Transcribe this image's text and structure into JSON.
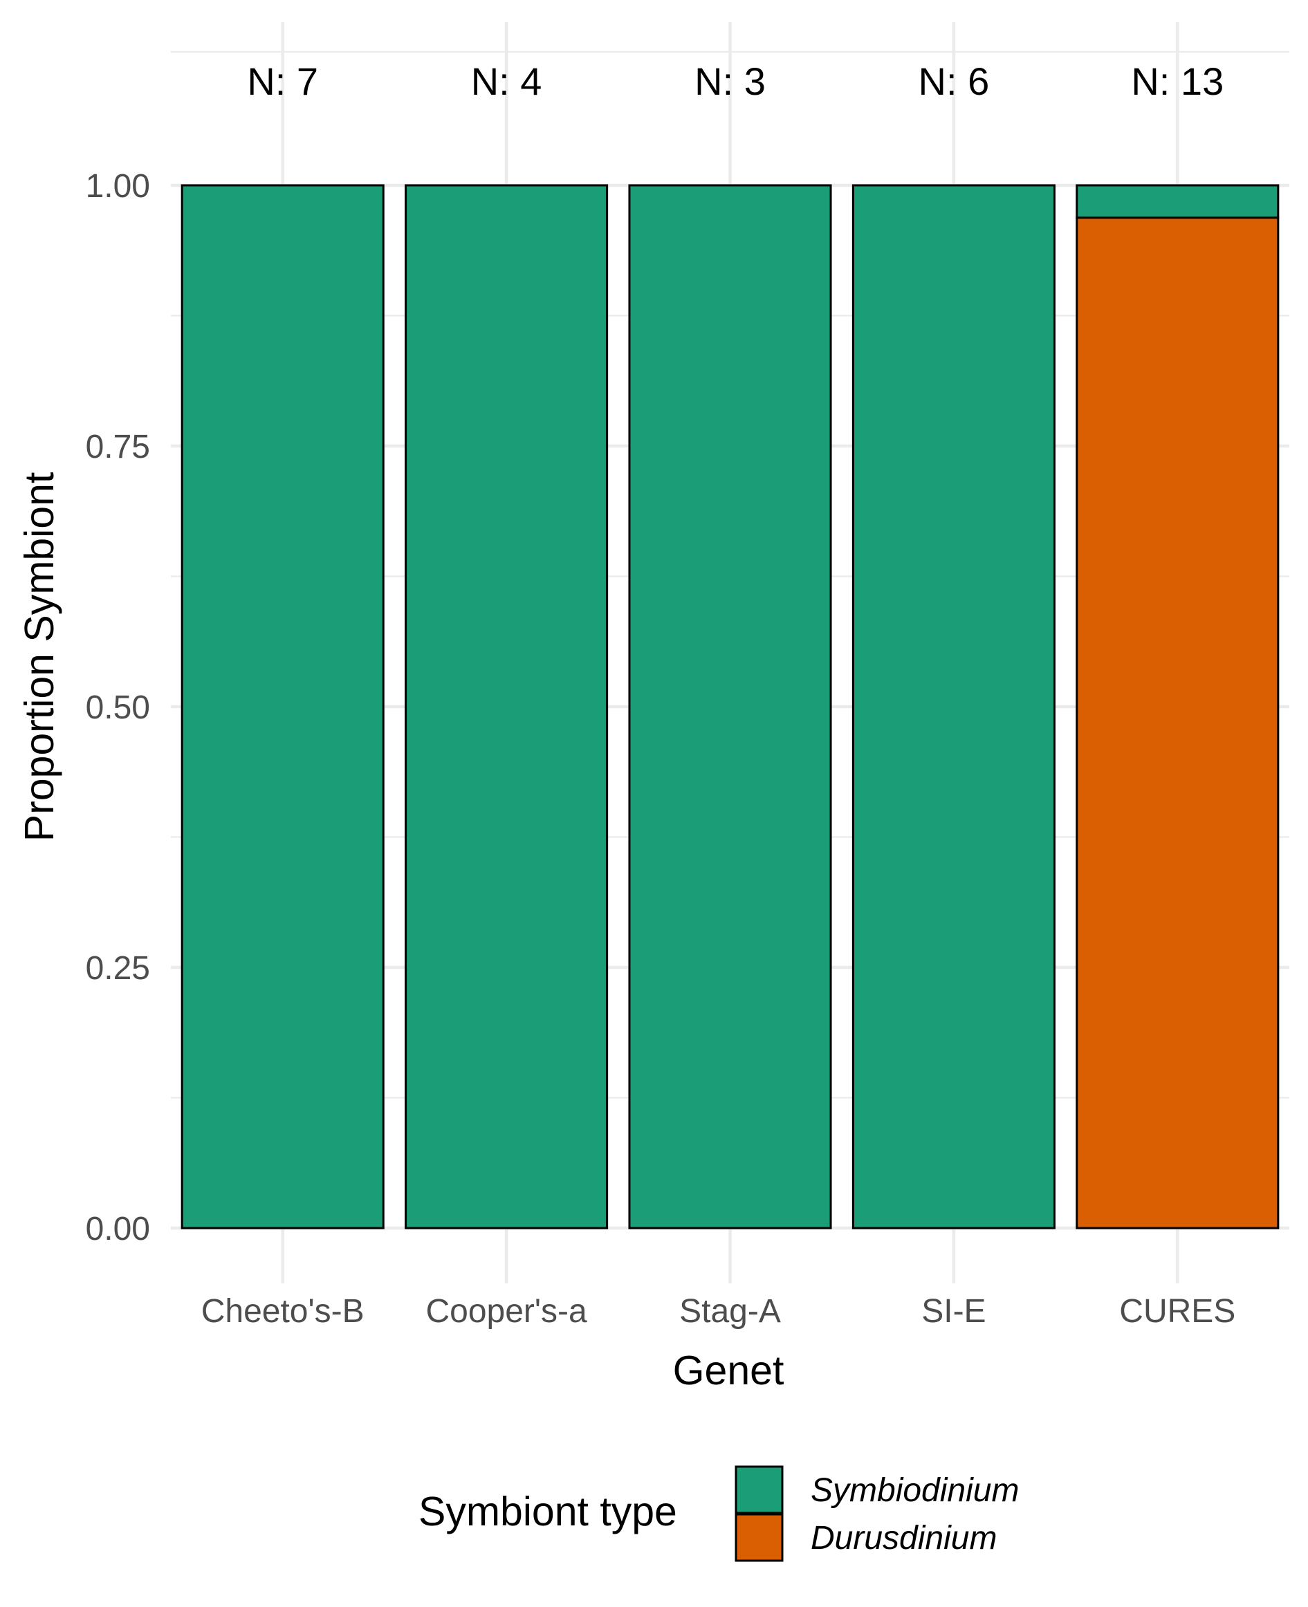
{
  "chart_data": {
    "type": "bar",
    "stacked": true,
    "xlabel": "Genet",
    "ylabel": "Proportion Symbiont",
    "ylim": [
      -0.08,
      1.125
    ],
    "y_ticks": [
      "0.00",
      "0.25",
      "0.50",
      "0.75",
      "1.00"
    ],
    "y_tick_values": [
      0,
      0.25,
      0.5,
      0.75,
      1.0
    ],
    "categories": [
      "Cheeto's-B",
      "Cooper's-a",
      "Stag-A",
      "SI-E",
      "CURES"
    ],
    "sample_sizes": [
      "N: 7",
      "N: 4",
      "N: 3",
      "N: 6",
      "N: 13"
    ],
    "series": [
      {
        "name": "Durusdinium",
        "color": "#d95f02",
        "values": [
          0,
          0,
          0,
          0,
          0.969
        ]
      },
      {
        "name": "Symbiodinium",
        "color": "#1b9e77",
        "values": [
          1,
          1,
          1,
          1,
          0.031
        ]
      }
    ],
    "grid": true,
    "legend": {
      "title": "Symbiont type",
      "position": "bottom",
      "items": [
        {
          "label": "Symbiodinium",
          "color": "#1b9e77"
        },
        {
          "label": "Durusdinium",
          "color": "#d95f02"
        }
      ]
    }
  }
}
